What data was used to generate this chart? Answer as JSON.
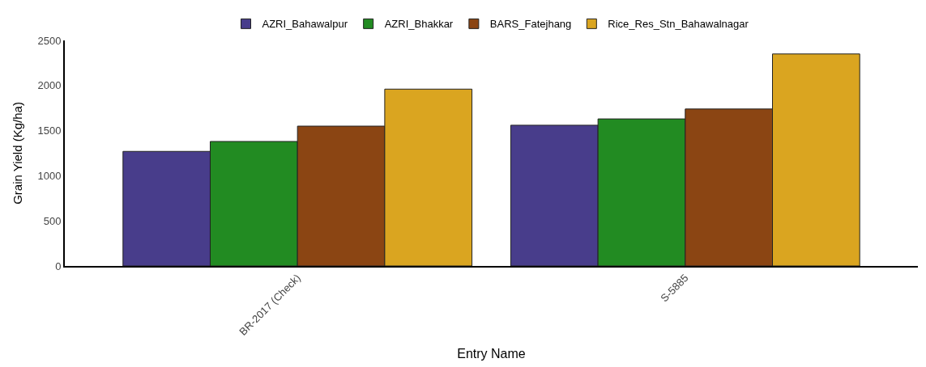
{
  "chart_data": {
    "type": "bar",
    "xlabel": "Entry Name",
    "ylabel": "Grain Yield (Kg/ha)",
    "categories": [
      "BR-2017 (Check)",
      "S-5885"
    ],
    "series": [
      {
        "name": "AZRI_Bahawalpur",
        "color": "#483d8b",
        "values": [
          1270,
          1560
        ]
      },
      {
        "name": "AZRI_Bhakkar",
        "color": "#228b22",
        "values": [
          1380,
          1630
        ]
      },
      {
        "name": "BARS_Fatejhang",
        "color": "#8b4513",
        "values": [
          1550,
          1740
        ]
      },
      {
        "name": "Rice_Res_Stn_Bahawalnagar",
        "color": "#daa520",
        "values": [
          1960,
          2350
        ]
      }
    ],
    "ylim": [
      0,
      2500
    ],
    "yticks": [
      0,
      500,
      1000,
      1500,
      2000,
      2500
    ],
    "legend": "top"
  }
}
